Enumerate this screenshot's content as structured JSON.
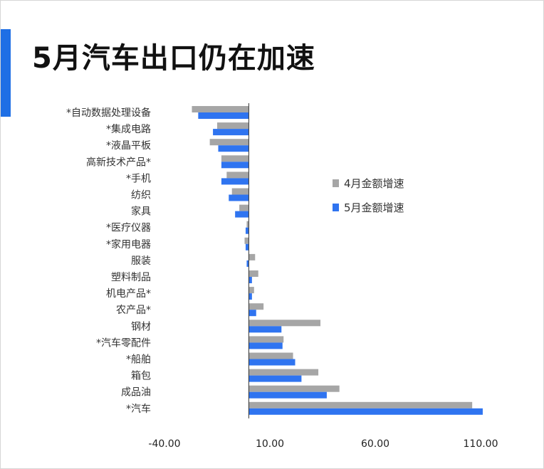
{
  "title": "5月汽车出口仍在加速",
  "colors": {
    "accent": "#1f6fe5",
    "april": "#a6a6a6",
    "may": "#2f74f0"
  },
  "chart_data": {
    "type": "bar",
    "orientation": "horizontal",
    "title": "5月汽车出口仍在加速",
    "categories": [
      "*自动数据处理设备",
      "*集成电路",
      "*液晶平板",
      "高新技术产品*",
      "*手机",
      "纺织",
      "家具",
      "*医疗仪器",
      "*家用电器",
      "服装",
      "塑料制品",
      "机电产品*",
      "农产品*",
      "钢材",
      "*汽车零配件",
      "*船舶",
      "箱包",
      "成品油",
      "*汽车"
    ],
    "series": [
      {
        "name": "4月金额增速",
        "color": "#a6a6a6",
        "values": [
          -27,
          -15,
          -18.5,
          -13,
          -10.5,
          -8,
          -4.5,
          -1,
          -2,
          3,
          4.5,
          2.5,
          7,
          34,
          16.5,
          21,
          33,
          43,
          106
        ]
      },
      {
        "name": "5月金额增速",
        "color": "#2f74f0",
        "values": [
          -24,
          -17,
          -14.5,
          -13,
          -13,
          -9.5,
          -6.5,
          -1.5,
          -1.5,
          -1,
          1.5,
          1.5,
          3.5,
          15.5,
          16,
          22,
          25,
          37,
          111
        ]
      }
    ],
    "xlim": [
      -40,
      110
    ],
    "xticks": [
      "-40.00",
      "10.00",
      "60.00",
      "110.00"
    ],
    "xtick_values": [
      -40,
      10,
      60,
      110
    ],
    "legend": {
      "placement": "right",
      "entries": [
        "4月金额增速",
        "5月金额增速"
      ]
    },
    "grid": false
  }
}
